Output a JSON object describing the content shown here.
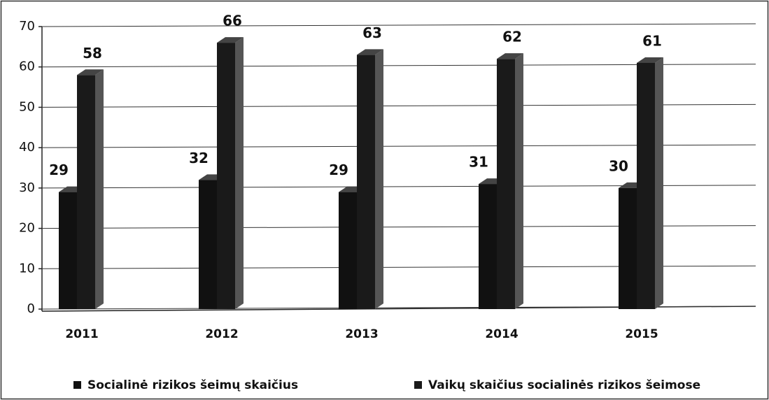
{
  "chart_data": {
    "type": "bar",
    "categories": [
      "2011",
      "2012",
      "2013",
      "2014",
      "2015"
    ],
    "series": [
      {
        "name": "Socialinė rizikos šeimų skaičius",
        "color": "#111111",
        "values": [
          29,
          32,
          29,
          31,
          30
        ]
      },
      {
        "name": "Vaikų skaičius socialinės rizikos šeimose",
        "color": "#1a1a1a",
        "values": [
          58,
          66,
          63,
          62,
          61
        ]
      }
    ],
    "ylim": [
      0,
      70
    ],
    "yticks": [
      0,
      10,
      20,
      30,
      40,
      50,
      60,
      70
    ],
    "grid": true,
    "legend": "bottom"
  }
}
